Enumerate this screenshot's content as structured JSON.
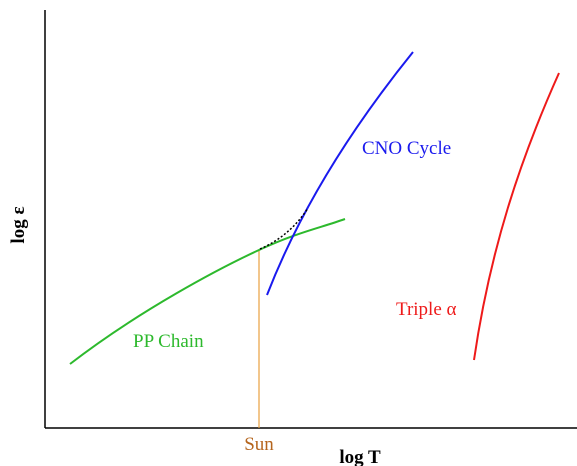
{
  "diagram": {
    "y_axis_label": "log ε",
    "x_axis_label": "log T",
    "marker_label": "Sun",
    "curves": [
      {
        "label": "PP Chain"
      },
      {
        "label": "CNO Cycle"
      },
      {
        "label": "Triple α"
      }
    ]
  }
}
